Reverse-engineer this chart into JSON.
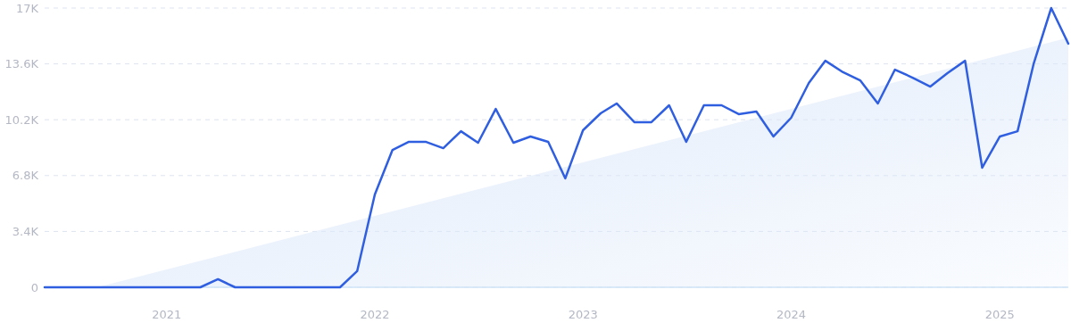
{
  "chart_data": {
    "type": "line",
    "x": [
      "2020-06",
      "2020-07",
      "2020-08",
      "2020-09",
      "2020-10",
      "2020-11",
      "2020-12",
      "2021-01",
      "2021-02",
      "2021-03",
      "2021-04",
      "2021-05",
      "2021-06",
      "2021-07",
      "2021-08",
      "2021-09",
      "2021-10",
      "2021-11",
      "2021-12",
      "2022-01",
      "2022-02",
      "2022-03",
      "2022-04",
      "2022-05",
      "2022-06",
      "2022-07",
      "2022-08",
      "2022-09",
      "2022-10",
      "2022-11",
      "2022-12",
      "2023-01",
      "2023-02",
      "2023-03",
      "2023-04",
      "2023-05",
      "2023-06",
      "2023-07",
      "2023-08",
      "2023-09",
      "2023-10",
      "2023-11",
      "2023-12",
      "2024-01",
      "2024-02",
      "2024-03",
      "2024-04",
      "2024-05",
      "2024-06",
      "2024-07",
      "2024-08",
      "2024-09",
      "2024-10",
      "2024-11",
      "2024-12",
      "2025-01",
      "2025-02",
      "2025-03",
      "2025-04",
      "2025-05"
    ],
    "series": [
      {
        "type": "area",
        "color": "#dde9fa",
        "x": [
          "2020-09",
          "2025-05"
        ],
        "values": [
          0,
          15200
        ]
      },
      {
        "color": "#2f5fe0",
        "values": [
          0,
          0,
          0,
          0,
          0,
          0,
          0,
          0,
          0,
          0,
          490,
          0,
          0,
          0,
          0,
          0,
          0,
          0,
          980,
          5650,
          8360,
          8850,
          8850,
          8470,
          9500,
          8800,
          10860,
          8800,
          9180,
          8850,
          6630,
          9560,
          10590,
          11190,
          10050,
          10050,
          11080,
          8850,
          11080,
          11080,
          10540,
          10700,
          9180,
          10320,
          12440,
          13790,
          13090,
          12600,
          11190,
          13250,
          12760,
          12220,
          13040,
          13790,
          7280,
          9180,
          9500,
          13580,
          17000,
          14830
        ]
      }
    ],
    "xlim": [
      "2020-06",
      "2025-05"
    ],
    "xticks": [
      {
        "value": "2021-01",
        "label": "2021"
      },
      {
        "value": "2022-01",
        "label": "2022"
      },
      {
        "value": "2023-01",
        "label": "2023"
      },
      {
        "value": "2024-01",
        "label": "2024"
      },
      {
        "value": "2025-01",
        "label": "2025"
      }
    ],
    "ylim": [
      0,
      17000
    ],
    "yticks": [
      0,
      {
        "value": 3400,
        "label": "3.4K"
      },
      {
        "value": 6800,
        "label": "6.8K"
      },
      {
        "value": 10200,
        "label": "10.2K"
      },
      {
        "value": 13600,
        "label": "13.6K"
      },
      {
        "value": 17000,
        "label": "17K"
      }
    ],
    "grid": "y",
    "marker": "none",
    "line_style": "solid"
  }
}
